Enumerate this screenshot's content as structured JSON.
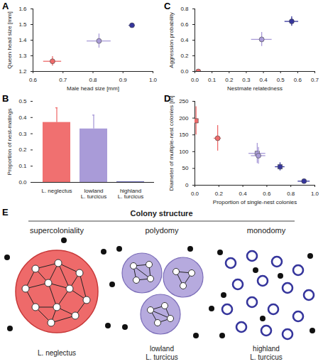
{
  "chart_data": [
    {
      "panel": "A",
      "type": "scatter",
      "xlabel": "Male head size [mm]",
      "ylabel": "Queen head size [mm]",
      "xlim": [
        0.6,
        1.0
      ],
      "xticks": [
        0.6,
        0.7,
        0.8,
        0.9,
        {
          "value": 1.0,
          "label": "1.0"
        }
      ],
      "ylim": [
        1.2,
        1.6
      ],
      "yticks": [
        1.2,
        1.3,
        1.4,
        1.5,
        1.6
      ],
      "series": [
        {
          "color": "#ee6a6a",
          "marker": "circle",
          "x": [
            0.665
          ],
          "y": [
            1.265
          ],
          "xerr": [
            0.03
          ],
          "yerr": [
            0.03
          ]
        },
        {
          "color": "#a99bd8",
          "marker": "circle",
          "x": [
            0.82
          ],
          "y": [
            1.395
          ],
          "xerr": [
            0.04
          ],
          "yerr": [
            0.045
          ]
        },
        {
          "color": "#35359c",
          "marker": "circle",
          "x": [
            0.93
          ],
          "y": [
            1.495
          ],
          "xerr": [
            0.01
          ],
          "yerr": [
            0.01
          ]
        }
      ]
    },
    {
      "panel": "B",
      "type": "bar",
      "ylabel": "Proportion of nest-matings",
      "categories": [
        "L. neglectus",
        "lowland L. turcicus",
        "highland L. turcicus"
      ],
      "values": [
        0.37,
        0.33,
        0.003
      ],
      "yerr": [
        0.09,
        0.085,
        0
      ],
      "colors": [
        "#f07070",
        "#a99bd8",
        "#35359c"
      ],
      "ylim": [
        0,
        0.5
      ],
      "yticks": [
        {
          "value": 0,
          "label": "0.0"
        },
        0.1,
        0.2,
        0.3,
        0.4,
        0.5
      ]
    },
    {
      "panel": "C",
      "type": "scatter",
      "xlabel": "Nestmate relatedness",
      "ylabel": "Aggression probability",
      "xlim": [
        0,
        0.7
      ],
      "xticks": [
        {
          "value": 0,
          "label": "0.0"
        },
        0.1,
        0.2,
        0.3,
        0.4,
        0.5,
        0.6,
        0.7
      ],
      "ylim": [
        0,
        0.8
      ],
      "yticks": [
        {
          "value": 0,
          "label": "0.0"
        },
        0.2,
        0.4,
        0.6,
        0.8
      ],
      "series": [
        {
          "color": "#ee6a6a",
          "marker": "circle",
          "x": [
            0.02
          ],
          "y": [
            0.0
          ],
          "xerr": [
            0.01
          ],
          "yerr": [
            0.005
          ]
        },
        {
          "color": "#a99bd8",
          "marker": "circle",
          "x": [
            0.39
          ],
          "y": [
            0.41
          ],
          "xerr": [
            0.06
          ],
          "yerr": [
            0.09
          ]
        },
        {
          "color": "#35359c",
          "marker": "circle",
          "x": [
            0.565
          ],
          "y": [
            0.64
          ],
          "xerr": [
            0.04
          ],
          "yerr": [
            0.06
          ]
        }
      ]
    },
    {
      "panel": "D",
      "type": "scatter",
      "xlabel": "Proportion of single-nest colonies",
      "ylabel": "Diameter of multiple-nest colonies [m]",
      "xlim": [
        0,
        1
      ],
      "xticks": [
        {
          "value": 0,
          "label": "0.0"
        },
        0.2,
        0.4,
        0.6,
        0.8,
        {
          "value": 1,
          "label": "1.0"
        }
      ],
      "ylim": [
        0,
        250
      ],
      "yticks": [
        0,
        50,
        100,
        150,
        200,
        250
      ],
      "series": [
        {
          "color": "#ee6a6a",
          "marker": "square",
          "x": [
            0.01
          ],
          "y": [
            192
          ],
          "xerr": [
            0.0
          ],
          "yerr": [
            42
          ]
        },
        {
          "color": "#ee6a6a",
          "marker": "circle",
          "x": [
            0.19
          ],
          "y": [
            140
          ],
          "xerr": [
            0.03
          ],
          "yerr": [
            38
          ]
        },
        {
          "color": "#a99bd8",
          "marker": "square",
          "x": [
            0.52
          ],
          "y": [
            95
          ],
          "xerr": [
            0.07
          ],
          "yerr": [
            30
          ]
        },
        {
          "color": "#a99bd8",
          "marker": "circle",
          "x": [
            0.53
          ],
          "y": [
            88
          ],
          "xerr": [
            0.06
          ],
          "yerr": [
            25
          ]
        },
        {
          "color": "#35359c",
          "marker": "square",
          "x": [
            0.71
          ],
          "y": [
            55
          ],
          "xerr": [
            0.04
          ],
          "yerr": [
            12
          ]
        },
        {
          "color": "#35359c",
          "marker": "circle",
          "x": [
            0.91
          ],
          "y": [
            12
          ],
          "xerr": [
            0.05
          ],
          "yerr": [
            5
          ]
        }
      ]
    }
  ],
  "diagram": {
    "panel": "E",
    "title": "Colony structure",
    "columns": [
      {
        "label": "supercoloniality",
        "species": "L. neglectus",
        "color": "#ee6a6a"
      },
      {
        "label": "polydomy",
        "species": "lowland L. turcicus",
        "color": "#a99bd8"
      },
      {
        "label": "monodomy",
        "species": "highland L. turcicus",
        "color": "#35359c"
      }
    ]
  }
}
